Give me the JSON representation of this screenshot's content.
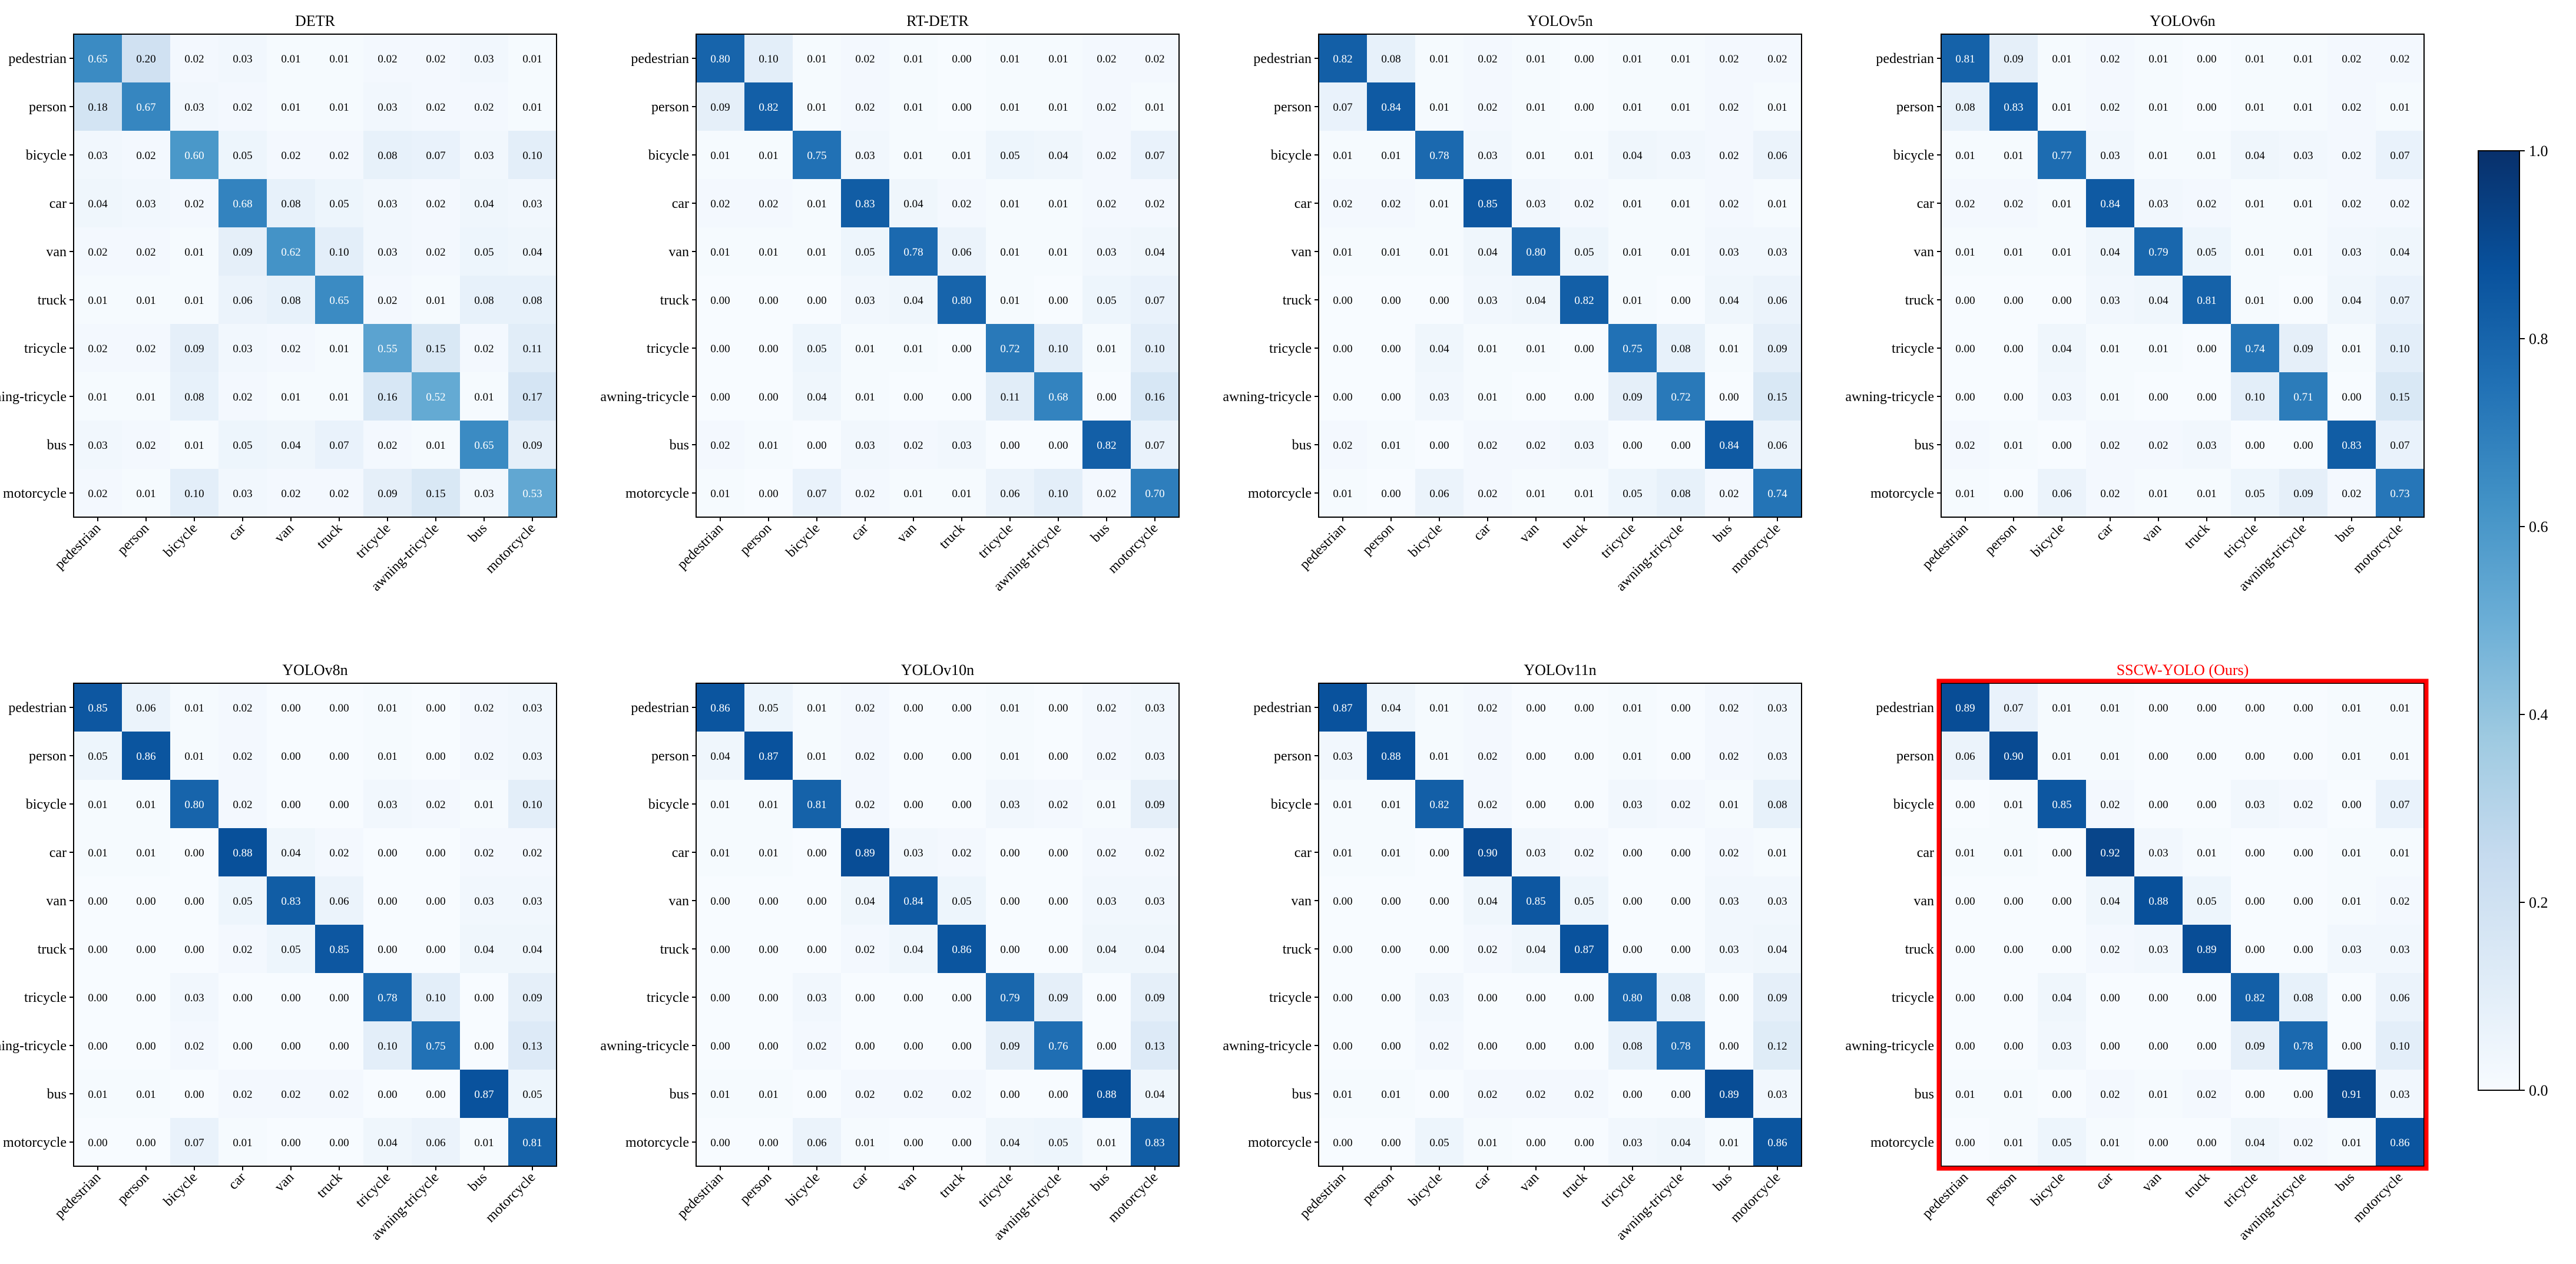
{
  "figure": {
    "colorbar": {
      "ticks": [
        "0.0",
        "0.2",
        "0.4",
        "0.6",
        "0.8",
        "1.0"
      ],
      "min": 0,
      "max": 1
    },
    "colormap": "Blues",
    "highlight_color": "#ff0000"
  },
  "chart_data": [
    {
      "type": "heatmap",
      "title": "DETR",
      "highlight": false,
      "categories": [
        "pedestrian",
        "person",
        "bicycle",
        "car",
        "van",
        "truck",
        "tricycle",
        "awning-tricycle",
        "bus",
        "motorcycle"
      ],
      "values": [
        [
          0.65,
          0.2,
          0.02,
          0.03,
          0.01,
          0.01,
          0.02,
          0.02,
          0.03,
          0.01
        ],
        [
          0.18,
          0.67,
          0.03,
          0.02,
          0.01,
          0.01,
          0.03,
          0.02,
          0.02,
          0.01
        ],
        [
          0.03,
          0.02,
          0.6,
          0.05,
          0.02,
          0.02,
          0.08,
          0.07,
          0.03,
          0.1
        ],
        [
          0.04,
          0.03,
          0.02,
          0.68,
          0.08,
          0.05,
          0.03,
          0.02,
          0.04,
          0.03
        ],
        [
          0.02,
          0.02,
          0.01,
          0.09,
          0.62,
          0.1,
          0.03,
          0.02,
          0.05,
          0.04
        ],
        [
          0.01,
          0.01,
          0.01,
          0.06,
          0.08,
          0.65,
          0.02,
          0.01,
          0.08,
          0.08
        ],
        [
          0.02,
          0.02,
          0.09,
          0.03,
          0.02,
          0.01,
          0.55,
          0.15,
          0.02,
          0.11
        ],
        [
          0.01,
          0.01,
          0.08,
          0.02,
          0.01,
          0.01,
          0.16,
          0.52,
          0.01,
          0.17
        ],
        [
          0.03,
          0.02,
          0.01,
          0.05,
          0.04,
          0.07,
          0.02,
          0.01,
          0.65,
          0.09
        ],
        [
          0.02,
          0.01,
          0.1,
          0.03,
          0.02,
          0.02,
          0.09,
          0.15,
          0.03,
          0.53
        ]
      ]
    },
    {
      "type": "heatmap",
      "title": "RT-DETR",
      "highlight": false,
      "categories": [
        "pedestrian",
        "person",
        "bicycle",
        "car",
        "van",
        "truck",
        "tricycle",
        "awning-tricycle",
        "bus",
        "motorcycle"
      ],
      "values": [
        [
          0.8,
          0.1,
          0.01,
          0.02,
          0.01,
          0.0,
          0.01,
          0.01,
          0.02,
          0.02
        ],
        [
          0.09,
          0.82,
          0.01,
          0.02,
          0.01,
          0.0,
          0.01,
          0.01,
          0.02,
          0.01
        ],
        [
          0.01,
          0.01,
          0.75,
          0.03,
          0.01,
          0.01,
          0.05,
          0.04,
          0.02,
          0.07
        ],
        [
          0.02,
          0.02,
          0.01,
          0.83,
          0.04,
          0.02,
          0.01,
          0.01,
          0.02,
          0.02
        ],
        [
          0.01,
          0.01,
          0.01,
          0.05,
          0.78,
          0.06,
          0.01,
          0.01,
          0.03,
          0.04
        ],
        [
          0.0,
          0.0,
          0.0,
          0.03,
          0.04,
          0.8,
          0.01,
          0.0,
          0.05,
          0.07
        ],
        [
          0.0,
          0.0,
          0.05,
          0.01,
          0.01,
          0.0,
          0.72,
          0.1,
          0.01,
          0.1
        ],
        [
          0.0,
          0.0,
          0.04,
          0.01,
          0.0,
          0.0,
          0.11,
          0.68,
          0.0,
          0.16
        ],
        [
          0.02,
          0.01,
          0.0,
          0.03,
          0.02,
          0.03,
          0.0,
          0.0,
          0.82,
          0.07
        ],
        [
          0.01,
          0.0,
          0.07,
          0.02,
          0.01,
          0.01,
          0.06,
          0.1,
          0.02,
          0.7
        ]
      ]
    },
    {
      "type": "heatmap",
      "title": "YOLOv5n",
      "highlight": false,
      "categories": [
        "pedestrian",
        "person",
        "bicycle",
        "car",
        "van",
        "truck",
        "tricycle",
        "awning-tricycle",
        "bus",
        "motorcycle"
      ],
      "values": [
        [
          0.82,
          0.08,
          0.01,
          0.02,
          0.01,
          0.0,
          0.01,
          0.01,
          0.02,
          0.02
        ],
        [
          0.07,
          0.84,
          0.01,
          0.02,
          0.01,
          0.0,
          0.01,
          0.01,
          0.02,
          0.01
        ],
        [
          0.01,
          0.01,
          0.78,
          0.03,
          0.01,
          0.01,
          0.04,
          0.03,
          0.02,
          0.06
        ],
        [
          0.02,
          0.02,
          0.01,
          0.85,
          0.03,
          0.02,
          0.01,
          0.01,
          0.02,
          0.01
        ],
        [
          0.01,
          0.01,
          0.01,
          0.04,
          0.8,
          0.05,
          0.01,
          0.01,
          0.03,
          0.03
        ],
        [
          0.0,
          0.0,
          0.0,
          0.03,
          0.04,
          0.82,
          0.01,
          0.0,
          0.04,
          0.06
        ],
        [
          0.0,
          0.0,
          0.04,
          0.01,
          0.01,
          0.0,
          0.75,
          0.08,
          0.01,
          0.09
        ],
        [
          0.0,
          0.0,
          0.03,
          0.01,
          0.0,
          0.0,
          0.09,
          0.72,
          0.0,
          0.15
        ],
        [
          0.02,
          0.01,
          0.0,
          0.02,
          0.02,
          0.03,
          0.0,
          0.0,
          0.84,
          0.06
        ],
        [
          0.01,
          0.0,
          0.06,
          0.02,
          0.01,
          0.01,
          0.05,
          0.08,
          0.02,
          0.74
        ]
      ]
    },
    {
      "type": "heatmap",
      "title": "YOLOv6n",
      "highlight": false,
      "categories": [
        "pedestrian",
        "person",
        "bicycle",
        "car",
        "van",
        "truck",
        "tricycle",
        "awning-tricycle",
        "bus",
        "motorcycle"
      ],
      "values": [
        [
          0.81,
          0.09,
          0.01,
          0.02,
          0.01,
          0.0,
          0.01,
          0.01,
          0.02,
          0.02
        ],
        [
          0.08,
          0.83,
          0.01,
          0.02,
          0.01,
          0.0,
          0.01,
          0.01,
          0.02,
          0.01
        ],
        [
          0.01,
          0.01,
          0.77,
          0.03,
          0.01,
          0.01,
          0.04,
          0.03,
          0.02,
          0.07
        ],
        [
          0.02,
          0.02,
          0.01,
          0.84,
          0.03,
          0.02,
          0.01,
          0.01,
          0.02,
          0.02
        ],
        [
          0.01,
          0.01,
          0.01,
          0.04,
          0.79,
          0.05,
          0.01,
          0.01,
          0.03,
          0.04
        ],
        [
          0.0,
          0.0,
          0.0,
          0.03,
          0.04,
          0.81,
          0.01,
          0.0,
          0.04,
          0.07
        ],
        [
          0.0,
          0.0,
          0.04,
          0.01,
          0.01,
          0.0,
          0.74,
          0.09,
          0.01,
          0.1
        ],
        [
          0.0,
          0.0,
          0.03,
          0.01,
          0.0,
          0.0,
          0.1,
          0.71,
          0.0,
          0.15
        ],
        [
          0.02,
          0.01,
          0.0,
          0.02,
          0.02,
          0.03,
          0.0,
          0.0,
          0.83,
          0.07
        ],
        [
          0.01,
          0.0,
          0.06,
          0.02,
          0.01,
          0.01,
          0.05,
          0.09,
          0.02,
          0.73
        ]
      ]
    },
    {
      "type": "heatmap",
      "title": "YOLOv8n",
      "highlight": false,
      "categories": [
        "pedestrian",
        "person",
        "bicycle",
        "car",
        "van",
        "truck",
        "tricycle",
        "awning-tricycle",
        "bus",
        "motorcycle"
      ],
      "values": [
        [
          0.85,
          0.06,
          0.01,
          0.02,
          0.0,
          0.0,
          0.01,
          0.0,
          0.02,
          0.03
        ],
        [
          0.05,
          0.86,
          0.01,
          0.02,
          0.0,
          0.0,
          0.01,
          0.0,
          0.02,
          0.03
        ],
        [
          0.01,
          0.01,
          0.8,
          0.02,
          0.0,
          0.0,
          0.03,
          0.02,
          0.01,
          0.1
        ],
        [
          0.01,
          0.01,
          0.0,
          0.88,
          0.04,
          0.02,
          0.0,
          0.0,
          0.02,
          0.02
        ],
        [
          0.0,
          0.0,
          0.0,
          0.05,
          0.83,
          0.06,
          0.0,
          0.0,
          0.03,
          0.03
        ],
        [
          0.0,
          0.0,
          0.0,
          0.02,
          0.05,
          0.85,
          0.0,
          0.0,
          0.04,
          0.04
        ],
        [
          0.0,
          0.0,
          0.03,
          0.0,
          0.0,
          0.0,
          0.78,
          0.1,
          0.0,
          0.09
        ],
        [
          0.0,
          0.0,
          0.02,
          0.0,
          0.0,
          0.0,
          0.1,
          0.75,
          0.0,
          0.13
        ],
        [
          0.01,
          0.01,
          0.0,
          0.02,
          0.02,
          0.02,
          0.0,
          0.0,
          0.87,
          0.05
        ],
        [
          0.0,
          0.0,
          0.07,
          0.01,
          0.0,
          0.0,
          0.04,
          0.06,
          0.01,
          0.81
        ]
      ]
    },
    {
      "type": "heatmap",
      "title": "YOLOv10n",
      "highlight": false,
      "categories": [
        "pedestrian",
        "person",
        "bicycle",
        "car",
        "van",
        "truck",
        "tricycle",
        "awning-tricycle",
        "bus",
        "motorcycle"
      ],
      "values": [
        [
          0.86,
          0.05,
          0.01,
          0.02,
          0.0,
          0.0,
          0.01,
          0.0,
          0.02,
          0.03
        ],
        [
          0.04,
          0.87,
          0.01,
          0.02,
          0.0,
          0.0,
          0.01,
          0.0,
          0.02,
          0.03
        ],
        [
          0.01,
          0.01,
          0.81,
          0.02,
          0.0,
          0.0,
          0.03,
          0.02,
          0.01,
          0.09
        ],
        [
          0.01,
          0.01,
          0.0,
          0.89,
          0.03,
          0.02,
          0.0,
          0.0,
          0.02,
          0.02
        ],
        [
          0.0,
          0.0,
          0.0,
          0.04,
          0.84,
          0.05,
          0.0,
          0.0,
          0.03,
          0.03
        ],
        [
          0.0,
          0.0,
          0.0,
          0.02,
          0.04,
          0.86,
          0.0,
          0.0,
          0.04,
          0.04
        ],
        [
          0.0,
          0.0,
          0.03,
          0.0,
          0.0,
          0.0,
          0.79,
          0.09,
          0.0,
          0.09
        ],
        [
          0.0,
          0.0,
          0.02,
          0.0,
          0.0,
          0.0,
          0.09,
          0.76,
          0.0,
          0.13
        ],
        [
          0.01,
          0.01,
          0.0,
          0.02,
          0.02,
          0.02,
          0.0,
          0.0,
          0.88,
          0.04
        ],
        [
          0.0,
          0.0,
          0.06,
          0.01,
          0.0,
          0.0,
          0.04,
          0.05,
          0.01,
          0.83
        ]
      ]
    },
    {
      "type": "heatmap",
      "title": "YOLOv11n",
      "highlight": false,
      "categories": [
        "pedestrian",
        "person",
        "bicycle",
        "car",
        "van",
        "truck",
        "tricycle",
        "awning-tricycle",
        "bus",
        "motorcycle"
      ],
      "values": [
        [
          0.87,
          0.04,
          0.01,
          0.02,
          0.0,
          0.0,
          0.01,
          0.0,
          0.02,
          0.03
        ],
        [
          0.03,
          0.88,
          0.01,
          0.02,
          0.0,
          0.0,
          0.01,
          0.0,
          0.02,
          0.03
        ],
        [
          0.01,
          0.01,
          0.82,
          0.02,
          0.0,
          0.0,
          0.03,
          0.02,
          0.01,
          0.08
        ],
        [
          0.01,
          0.01,
          0.0,
          0.9,
          0.03,
          0.02,
          0.0,
          0.0,
          0.02,
          0.01
        ],
        [
          0.0,
          0.0,
          0.0,
          0.04,
          0.85,
          0.05,
          0.0,
          0.0,
          0.03,
          0.03
        ],
        [
          0.0,
          0.0,
          0.0,
          0.02,
          0.04,
          0.87,
          0.0,
          0.0,
          0.03,
          0.04
        ],
        [
          0.0,
          0.0,
          0.03,
          0.0,
          0.0,
          0.0,
          0.8,
          0.08,
          0.0,
          0.09
        ],
        [
          0.0,
          0.0,
          0.02,
          0.0,
          0.0,
          0.0,
          0.08,
          0.78,
          0.0,
          0.12
        ],
        [
          0.01,
          0.01,
          0.0,
          0.02,
          0.02,
          0.02,
          0.0,
          0.0,
          0.89,
          0.03
        ],
        [
          0.0,
          0.0,
          0.05,
          0.01,
          0.0,
          0.0,
          0.03,
          0.04,
          0.01,
          0.86
        ]
      ]
    },
    {
      "type": "heatmap",
      "title": "SSCW-YOLO (Ours)",
      "highlight": true,
      "categories": [
        "pedestrian",
        "person",
        "bicycle",
        "car",
        "van",
        "truck",
        "tricycle",
        "awning-tricycle",
        "bus",
        "motorcycle"
      ],
      "values": [
        [
          0.89,
          0.07,
          0.01,
          0.01,
          0.0,
          0.0,
          0.0,
          0.0,
          0.01,
          0.01
        ],
        [
          0.06,
          0.9,
          0.01,
          0.01,
          0.0,
          0.0,
          0.0,
          0.0,
          0.01,
          0.01
        ],
        [
          0.0,
          0.01,
          0.85,
          0.02,
          0.0,
          0.0,
          0.03,
          0.02,
          0.0,
          0.07
        ],
        [
          0.01,
          0.01,
          0.0,
          0.92,
          0.03,
          0.01,
          0.0,
          0.0,
          0.01,
          0.01
        ],
        [
          0.0,
          0.0,
          0.0,
          0.04,
          0.88,
          0.05,
          0.0,
          0.0,
          0.01,
          0.02
        ],
        [
          0.0,
          0.0,
          0.0,
          0.02,
          0.03,
          0.89,
          0.0,
          0.0,
          0.03,
          0.03
        ],
        [
          0.0,
          0.0,
          0.04,
          0.0,
          0.0,
          0.0,
          0.82,
          0.08,
          0.0,
          0.06
        ],
        [
          0.0,
          0.0,
          0.03,
          0.0,
          0.0,
          0.0,
          0.09,
          0.78,
          0.0,
          0.1
        ],
        [
          0.01,
          0.01,
          0.0,
          0.02,
          0.01,
          0.02,
          0.0,
          0.0,
          0.91,
          0.03
        ],
        [
          0.0,
          0.01,
          0.05,
          0.01,
          0.0,
          0.0,
          0.04,
          0.02,
          0.01,
          0.86
        ]
      ]
    }
  ]
}
